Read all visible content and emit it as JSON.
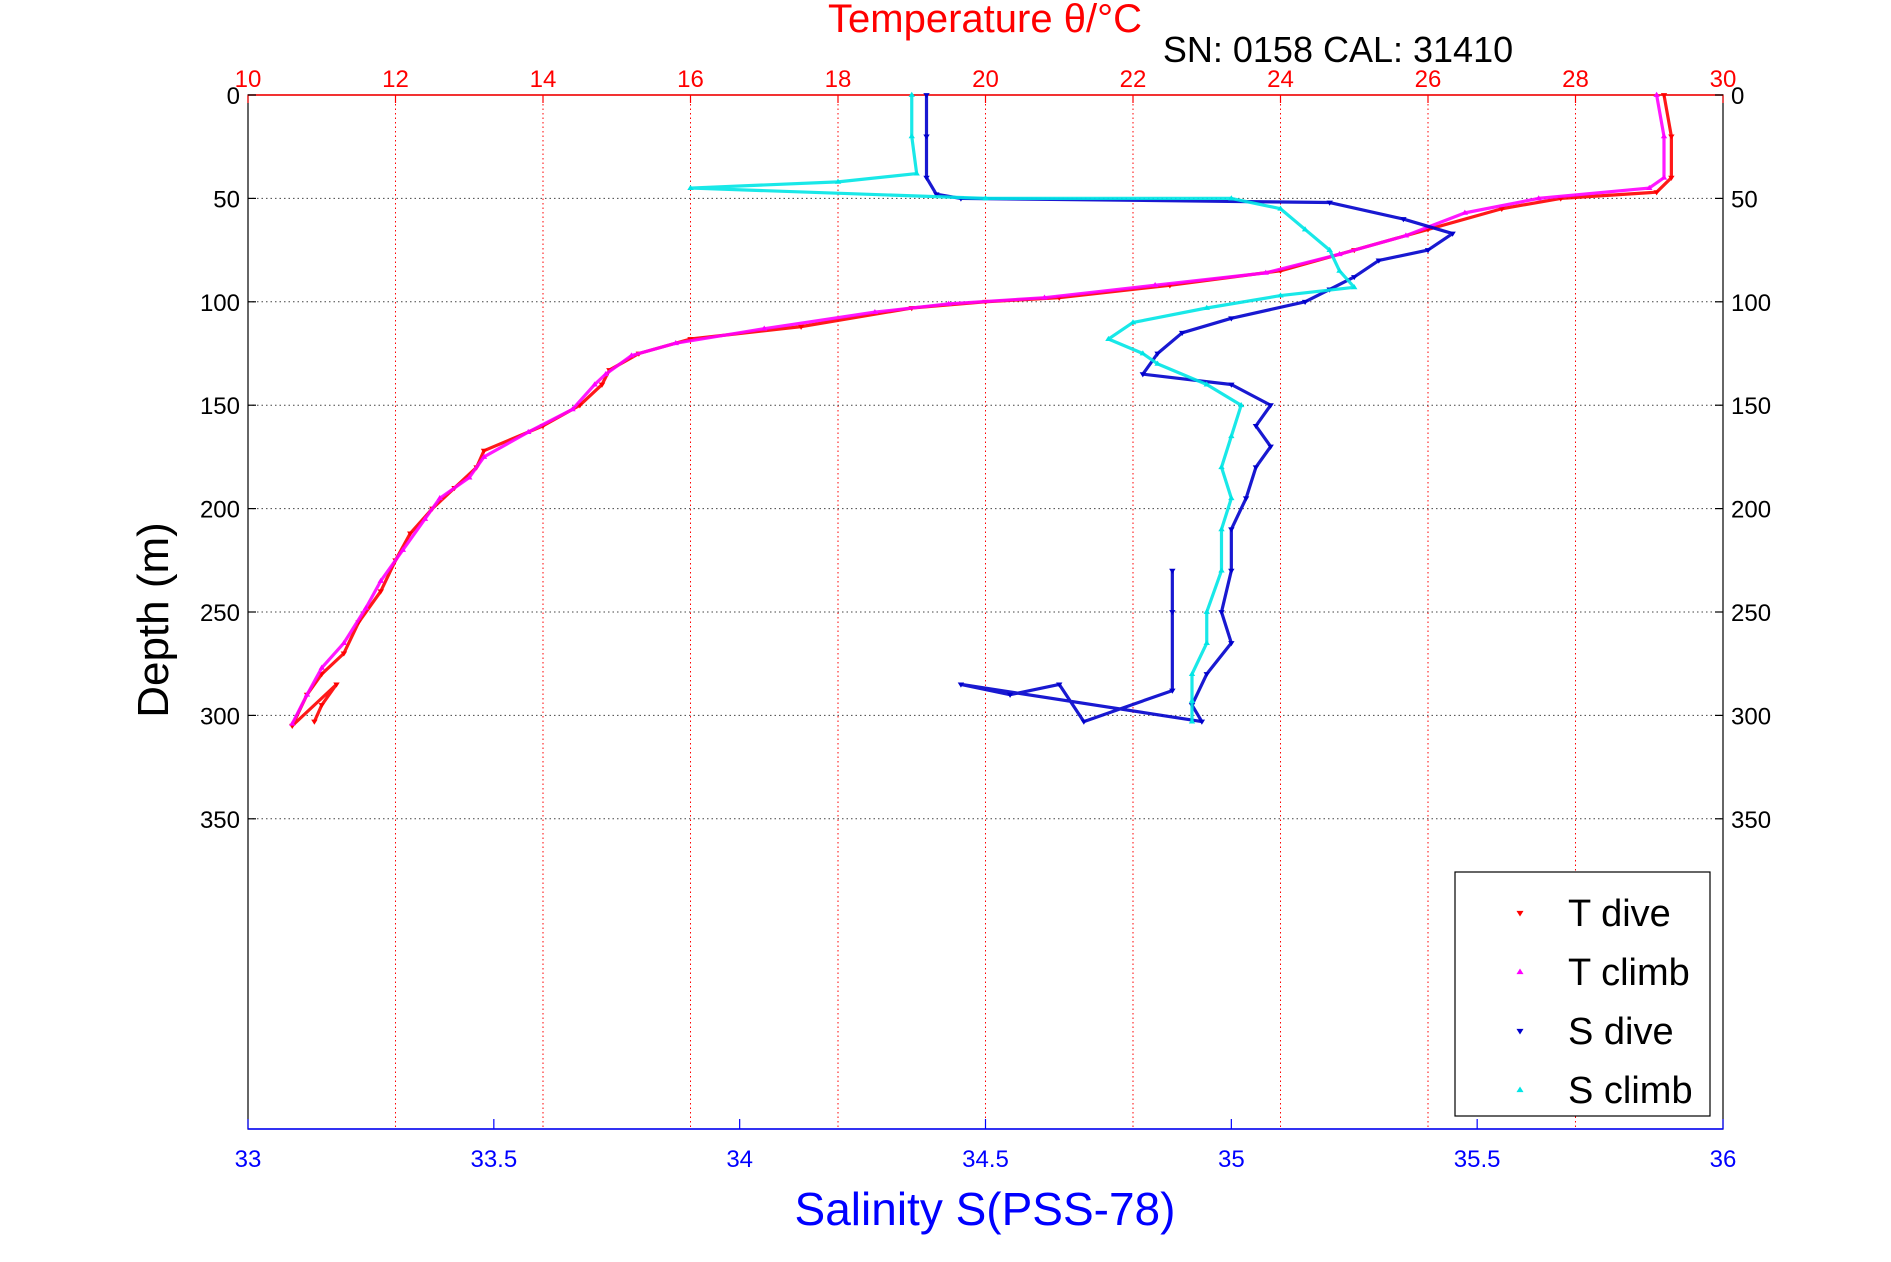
{
  "chart_data": {
    "type": "scatter",
    "title": "Temperature θ/°C",
    "subtitle": "SN: 0158  CAL: 31410",
    "ylabel": "Depth (m)",
    "xlabel_bottom": "Salinity S(PSS-78)",
    "ylim": [
      0,
      500
    ],
    "y_reversed": true,
    "y_ticks": [
      0,
      50,
      100,
      150,
      200,
      250,
      300,
      350
    ],
    "top_axis": {
      "quantity": "temperature",
      "lim": [
        10,
        30
      ],
      "ticks": [
        10,
        12,
        14,
        16,
        18,
        20,
        22,
        24,
        26,
        28,
        30
      ]
    },
    "bottom_axis": {
      "quantity": "salinity",
      "lim": [
        33,
        36
      ],
      "ticks": [
        33,
        33.5,
        34,
        34.5,
        35,
        35.5,
        36
      ]
    },
    "grid": true,
    "legend": {
      "position": "bottom-right",
      "entries": [
        "T dive",
        "T climb",
        "S dive",
        "S climb"
      ]
    },
    "colors": {
      "title": "#ff0000",
      "t_axis": "#ff0000",
      "s_axis": "#0000ff",
      "t_dive": "#ff0000",
      "t_climb": "#ff00ff",
      "s_dive": "#0000cc",
      "s_climb": "#00e5e5"
    },
    "series": [
      {
        "name": "T dive",
        "axis": "temperature",
        "marker": "triangle-down",
        "points": [
          [
            29.2,
            0
          ],
          [
            29.3,
            20
          ],
          [
            29.3,
            40
          ],
          [
            29.1,
            47
          ],
          [
            27.8,
            50
          ],
          [
            27.0,
            55
          ],
          [
            26.0,
            65
          ],
          [
            25.0,
            75
          ],
          [
            24.0,
            85
          ],
          [
            22.5,
            92
          ],
          [
            21.0,
            98
          ],
          [
            20.0,
            100
          ],
          [
            19.0,
            103
          ],
          [
            17.5,
            112
          ],
          [
            16.0,
            118
          ],
          [
            15.3,
            125
          ],
          [
            14.9,
            133
          ],
          [
            14.8,
            140
          ],
          [
            14.5,
            150
          ],
          [
            14.0,
            160
          ],
          [
            13.2,
            172
          ],
          [
            13.1,
            180
          ],
          [
            12.8,
            190
          ],
          [
            12.5,
            200
          ],
          [
            12.2,
            212
          ],
          [
            12.0,
            225
          ],
          [
            11.8,
            240
          ],
          [
            11.5,
            255
          ],
          [
            11.3,
            270
          ],
          [
            11.0,
            280
          ],
          [
            10.8,
            290
          ],
          [
            10.6,
            305
          ],
          [
            11.2,
            285
          ],
          [
            11.0,
            295
          ],
          [
            10.9,
            303
          ]
        ]
      },
      {
        "name": "T climb",
        "axis": "temperature",
        "marker": "triangle-up",
        "points": [
          [
            29.1,
            0
          ],
          [
            29.2,
            20
          ],
          [
            29.2,
            40
          ],
          [
            29.0,
            45
          ],
          [
            27.5,
            50
          ],
          [
            26.5,
            57
          ],
          [
            25.7,
            68
          ],
          [
            24.8,
            77
          ],
          [
            23.8,
            86
          ],
          [
            22.3,
            92
          ],
          [
            20.8,
            98
          ],
          [
            19.5,
            101
          ],
          [
            18.5,
            105
          ],
          [
            17.0,
            113
          ],
          [
            15.8,
            120
          ],
          [
            15.2,
            126
          ],
          [
            14.85,
            135
          ],
          [
            14.7,
            140
          ],
          [
            14.4,
            152
          ],
          [
            13.8,
            163
          ],
          [
            13.2,
            175
          ],
          [
            13.0,
            185
          ],
          [
            12.6,
            195
          ],
          [
            12.4,
            205
          ],
          [
            12.1,
            220
          ],
          [
            11.8,
            235
          ],
          [
            11.6,
            248
          ],
          [
            11.3,
            265
          ],
          [
            11.0,
            277
          ],
          [
            10.8,
            290
          ],
          [
            10.6,
            304
          ]
        ]
      },
      {
        "name": "S dive",
        "axis": "salinity",
        "marker": "triangle-down",
        "points": [
          [
            34.38,
            0
          ],
          [
            34.38,
            20
          ],
          [
            34.38,
            40
          ],
          [
            34.4,
            48
          ],
          [
            34.45,
            50
          ],
          [
            35.2,
            52
          ],
          [
            35.35,
            60
          ],
          [
            35.45,
            67
          ],
          [
            35.4,
            75
          ],
          [
            35.3,
            80
          ],
          [
            35.25,
            88
          ],
          [
            35.2,
            94
          ],
          [
            35.15,
            100
          ],
          [
            35.0,
            108
          ],
          [
            34.9,
            115
          ],
          [
            34.85,
            125
          ],
          [
            34.82,
            135
          ],
          [
            35.0,
            140
          ],
          [
            35.08,
            150
          ],
          [
            35.05,
            160
          ],
          [
            35.08,
            170
          ],
          [
            35.05,
            180
          ],
          [
            35.03,
            195
          ],
          [
            35.0,
            210
          ],
          [
            35.0,
            230
          ],
          [
            34.98,
            250
          ],
          [
            35.0,
            265
          ],
          [
            34.95,
            280
          ],
          [
            34.92,
            295
          ],
          [
            34.94,
            303
          ],
          [
            34.45,
            285
          ],
          [
            34.55,
            290
          ],
          [
            34.65,
            285
          ],
          [
            34.7,
            303
          ],
          [
            34.88,
            288
          ],
          [
            34.88,
            250
          ],
          [
            34.88,
            230
          ]
        ]
      },
      {
        "name": "S climb",
        "axis": "salinity",
        "marker": "triangle-up",
        "points": [
          [
            34.35,
            0
          ],
          [
            34.35,
            20
          ],
          [
            34.36,
            38
          ],
          [
            34.2,
            42
          ],
          [
            33.9,
            45
          ],
          [
            34.5,
            50
          ],
          [
            35.0,
            50
          ],
          [
            35.1,
            55
          ],
          [
            35.15,
            65
          ],
          [
            35.2,
            75
          ],
          [
            35.22,
            85
          ],
          [
            35.25,
            93
          ],
          [
            35.1,
            97
          ],
          [
            34.95,
            103
          ],
          [
            34.8,
            110
          ],
          [
            34.75,
            118
          ],
          [
            34.82,
            125
          ],
          [
            34.85,
            130
          ],
          [
            34.95,
            140
          ],
          [
            35.02,
            150
          ],
          [
            35.0,
            165
          ],
          [
            34.98,
            180
          ],
          [
            35.0,
            195
          ],
          [
            34.98,
            210
          ],
          [
            34.98,
            230
          ],
          [
            34.95,
            250
          ],
          [
            34.95,
            265
          ],
          [
            34.92,
            280
          ],
          [
            34.92,
            293
          ],
          [
            34.92,
            303
          ]
        ]
      }
    ]
  }
}
